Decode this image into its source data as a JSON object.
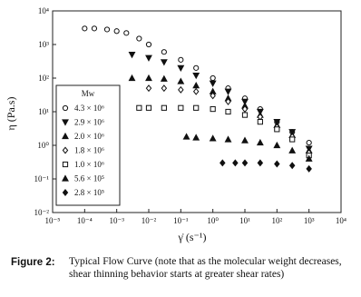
{
  "chart_data": {
    "type": "scatter",
    "xlog": true,
    "ylog": true,
    "xlabel": "γ̇ (s⁻¹)",
    "ylabel": "η (Pa.s)",
    "xlim": [
      1e-05,
      10000
    ],
    "ylim": [
      0.01,
      10000
    ],
    "xticks": [
      {
        "value": 1e-05,
        "label": "10⁻⁵"
      },
      {
        "value": 0.0001,
        "label": "10⁻⁴"
      },
      {
        "value": 0.001,
        "label": "10⁻³"
      },
      {
        "value": 0.01,
        "label": "10⁻²"
      },
      {
        "value": 0.1,
        "label": "10⁻¹"
      },
      {
        "value": 1,
        "label": "10⁰"
      },
      {
        "value": 10,
        "label": "10¹"
      },
      {
        "value": 100,
        "label": "10²"
      },
      {
        "value": 1000,
        "label": "10³"
      },
      {
        "value": 10000,
        "label": "10⁴"
      }
    ],
    "yticks": [
      {
        "value": 0.01,
        "label": "10⁻²"
      },
      {
        "value": 0.1,
        "label": "10⁻¹"
      },
      {
        "value": 1,
        "label": "10⁰"
      },
      {
        "value": 10,
        "label": "10¹"
      },
      {
        "value": 100,
        "label": "10²"
      },
      {
        "value": 1000,
        "label": "10³"
      },
      {
        "value": 10000,
        "label": "10⁴"
      }
    ],
    "legend_title": "Mw",
    "legend": "lower left",
    "series": [
      {
        "name": "4.3 × 10⁶",
        "marker": "circle-open",
        "color": "#111",
        "x": [
          0.0001,
          0.0002,
          0.0005,
          0.001,
          0.002,
          0.005,
          0.01,
          0.03,
          0.1,
          0.3,
          1,
          3,
          10,
          30,
          100,
          300,
          1000
        ],
        "values": [
          3000,
          3000,
          2800,
          2500,
          2200,
          1500,
          1000,
          600,
          350,
          200,
          100,
          50,
          25,
          12,
          5,
          2.5,
          1.2
        ]
      },
      {
        "name": "2.9 × 10⁶",
        "marker": "triangle-down",
        "color": "#111",
        "x": [
          0.003,
          0.01,
          0.03,
          0.1,
          0.3,
          1,
          3,
          10,
          30,
          100,
          300,
          1000
        ],
        "values": [
          500,
          400,
          300,
          200,
          120,
          70,
          40,
          20,
          10,
          5,
          2.5,
          0.8
        ]
      },
      {
        "name": "2.0 × 10⁶",
        "marker": "triangle-up",
        "color": "#111",
        "x": [
          0.003,
          0.01,
          0.03,
          0.1,
          0.3,
          1,
          3,
          10,
          30,
          100,
          300,
          1000
        ],
        "values": [
          100,
          100,
          95,
          80,
          60,
          40,
          25,
          15,
          8,
          4,
          2,
          0.7
        ]
      },
      {
        "name": "1.8 × 10⁶",
        "marker": "diamond-open",
        "color": "#111",
        "x": [
          0.01,
          0.03,
          0.1,
          0.3,
          1,
          3,
          10,
          30,
          100,
          300,
          1000
        ],
        "values": [
          50,
          50,
          45,
          40,
          30,
          20,
          12,
          7,
          3.5,
          1.8,
          0.6
        ]
      },
      {
        "name": "1.0 × 10⁶",
        "marker": "square-open",
        "color": "#111",
        "x": [
          0.005,
          0.01,
          0.03,
          0.1,
          0.3,
          1,
          3,
          10,
          30,
          100,
          300,
          1000
        ],
        "values": [
          13,
          13,
          13,
          13,
          13,
          12,
          10,
          8,
          5,
          3,
          1.5,
          0.5
        ]
      },
      {
        "name": "5.6 × 10⁵",
        "marker": "triangle-up",
        "color": "#111",
        "x": [
          0.15,
          0.3,
          1,
          3,
          10,
          30,
          100,
          300,
          1000
        ],
        "values": [
          1.8,
          1.7,
          1.6,
          1.5,
          1.4,
          1.2,
          1,
          0.7,
          0.4
        ]
      },
      {
        "name": "2.8 × 10⁵",
        "marker": "diamond",
        "color": "#111",
        "x": [
          2,
          5,
          10,
          30,
          100,
          300,
          1000
        ],
        "values": [
          0.3,
          0.3,
          0.3,
          0.3,
          0.28,
          0.25,
          0.2
        ]
      }
    ]
  },
  "caption": {
    "label": "Figure 2:",
    "text": "Typical Flow Curve (note that as the molecular weight decreases, shear thinning behavior starts at greater shear rates)"
  }
}
